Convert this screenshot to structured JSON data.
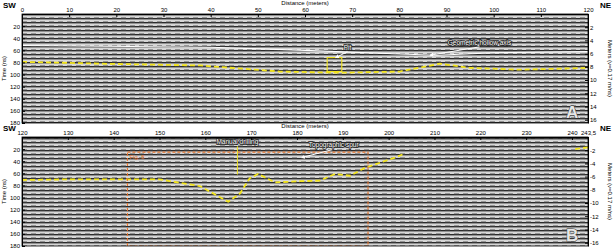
{
  "chart_data": [
    {
      "type": "radargram",
      "title": "A",
      "x_label": "Distance (meters)",
      "y_label": "Time (ns)",
      "y2_label": "Meters (v=0.17 m/ns)",
      "end_labels": [
        "SW",
        "NE"
      ],
      "xlim": [
        0,
        120
      ],
      "xticks": [
        0,
        10,
        20,
        30,
        40,
        50,
        60,
        70,
        80,
        90,
        100,
        110,
        120
      ],
      "ylim": [
        0,
        180
      ],
      "yticks": [
        20,
        40,
        60,
        80,
        100,
        120,
        140,
        160,
        180
      ],
      "y2lim": [
        0,
        16.5
      ],
      "y2ticks": [
        2,
        4,
        6,
        8,
        10,
        12,
        14,
        16
      ],
      "series": [
        {
          "color": "#ffffff",
          "line_style": "solid",
          "x": [
            0,
            40,
            60,
            80,
            88,
            100,
            120
          ],
          "values": [
            52,
            55,
            60,
            66,
            68,
            64,
            62
          ]
        },
        {
          "color": "#f2e41c",
          "line_style": "dashed",
          "x": [
            0,
            16.5,
            37.7,
            54.7,
            67.4,
            80.1,
            88.6,
            95,
            105.6,
            120
          ],
          "values": [
            79,
            82,
            85,
            95,
            97,
            95,
            82,
            89,
            92,
            89
          ]
        }
      ],
      "regions": [
        {
          "color": "#f2e41c",
          "line_style": "solid",
          "x": [
            64.7,
            67.8
          ],
          "y": [
            72,
            95
          ]
        }
      ],
      "annotations": [
        {
          "text": "Pit",
          "color": "#ffffff",
          "x": 69,
          "y": 59,
          "target_x": 66.5,
          "target_y": 72
        },
        {
          "text": "Geometric hollow axis",
          "color": "#ffffff",
          "x": 97,
          "y": 51,
          "target_x": 86.5,
          "target_y": 68
        }
      ]
    },
    {
      "type": "radargram",
      "title": "B",
      "x_label": "Distance (meters)",
      "y_label": "Time (ns)",
      "y2_label": "Meters (v=0.17 m/ns)",
      "end_labels": [
        "SW",
        "NE"
      ],
      "xlim": [
        120,
        243.5
      ],
      "xticks": [
        120,
        130,
        140,
        150,
        160,
        170,
        180,
        190,
        200,
        210,
        220,
        230,
        240,
        {
          "value": 243.5,
          "label": "243,5"
        }
      ],
      "ylim": [
        0,
        180
      ],
      "yticks": [
        20,
        40,
        60,
        80,
        100,
        120,
        140,
        160,
        180
      ],
      "y2lim": [
        0,
        -16.5
      ],
      "y2ticks": [
        -2,
        -4,
        -6,
        -8,
        -10,
        -12,
        -14,
        -16
      ],
      "series": [
        {
          "color": "#f2e41c",
          "line_style": "dashed",
          "x": [
            120,
            130,
            150,
            158.8,
            165,
            167.6,
            169.7,
            171.5,
            175.2,
            180.7,
            185,
            188.3,
            191.6,
            194.8,
            201.4,
            203.6,
            220,
            240.7,
            243.5
          ],
          "values": [
            71,
            70,
            70,
            81,
            107,
            93,
            68,
            61,
            75,
            73,
            72,
            61,
            64,
            51,
            34,
            27,
            null,
            20,
            17
          ]
        }
      ],
      "regions": [
        {
          "text": "Fig. 8",
          "color": "#e8742a",
          "line_style": "dashed",
          "x": [
            143,
            195.5
          ],
          "y": [
            25,
            180
          ]
        }
      ],
      "annotations": [
        {
          "text": "Manual drilling",
          "color": "#f2e41c",
          "x": 167,
          "y": 12,
          "target_x": 167,
          "target_y": 62
        },
        {
          "text": "Topographic spur",
          "color": "#ffffff",
          "x": 188,
          "y": 17,
          "target_x": 181,
          "target_y": 34
        }
      ]
    }
  ]
}
